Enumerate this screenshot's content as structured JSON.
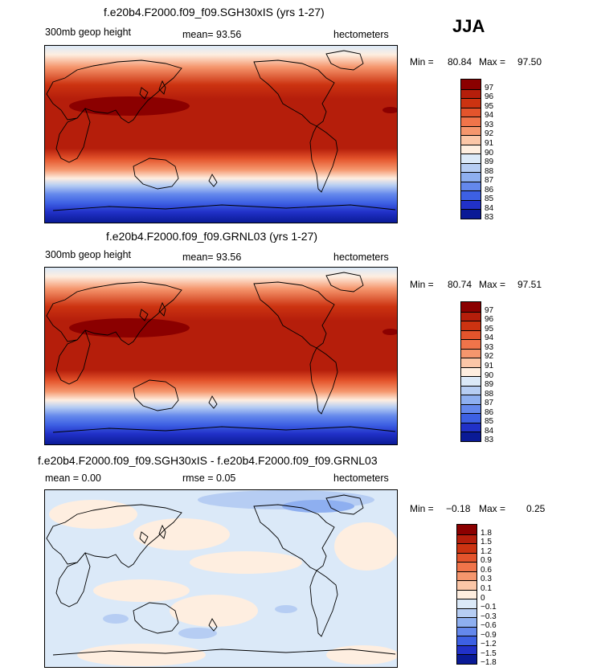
{
  "season": "JJA",
  "panels": [
    {
      "title": "f.e20b4.F2000.f09_f09.SGH30xIS (yrs 1-27)",
      "left_label": "300mb  geop height",
      "mean_text": "mean=   93.56",
      "units": "hectometers",
      "min_label": "Min =",
      "min_value": "80.84",
      "max_label": "Max =",
      "max_value": "97.50",
      "colorbar": {
        "labels": [
          "97",
          "96",
          "95",
          "94",
          "93",
          "92",
          "91",
          "90",
          "89",
          "88",
          "87",
          "86",
          "85",
          "84",
          "83"
        ],
        "colors": [
          "#8b0000",
          "#b51e0b",
          "#cc3311",
          "#e4542c",
          "#f0744a",
          "#f5966d",
          "#fbc6a7",
          "#feeee0",
          "#dbe9f8",
          "#b6cdf3",
          "#8eaff0",
          "#6488ec",
          "#3d60e3",
          "#2131c8",
          "#0a1a96"
        ]
      },
      "map_type": "absolute"
    },
    {
      "title": "f.e20b4.F2000.f09_f09.GRNL03 (yrs 1-27)",
      "left_label": "300mb  geop height",
      "mean_text": "mean=   93.56",
      "units": "hectometers",
      "min_label": "Min =",
      "min_value": "80.74",
      "max_label": "Max =",
      "max_value": "97.51",
      "colorbar": {
        "labels": [
          "97",
          "96",
          "95",
          "94",
          "93",
          "92",
          "91",
          "90",
          "89",
          "88",
          "87",
          "86",
          "85",
          "84",
          "83"
        ],
        "colors": [
          "#8b0000",
          "#b51e0b",
          "#cc3311",
          "#e4542c",
          "#f0744a",
          "#f5966d",
          "#fbc6a7",
          "#feeee0",
          "#dbe9f8",
          "#b6cdf3",
          "#8eaff0",
          "#6488ec",
          "#3d60e3",
          "#2131c8",
          "#0a1a96"
        ]
      },
      "map_type": "absolute"
    },
    {
      "title": "f.e20b4.F2000.f09_f09.SGH30xIS - f.e20b4.F2000.f09_f09.GRNL03",
      "left_label": "mean =     0.00",
      "mean_text": "rmse =     0.05",
      "units": "hectometers",
      "min_label": "Min =",
      "min_value": "−0.18",
      "max_label": "Max =",
      "max_value": "0.25",
      "colorbar": {
        "labels": [
          "1.8",
          "1.5",
          "1.2",
          "0.9",
          "0.6",
          "0.3",
          "0.1",
          "0",
          "−0.1",
          "−0.3",
          "−0.6",
          "−0.9",
          "−1.2",
          "−1.5",
          "−1.8"
        ],
        "colors": [
          "#8b0000",
          "#b51e0b",
          "#cc3311",
          "#e4542c",
          "#f0744a",
          "#f5966d",
          "#fbc6a7",
          "#feeee0",
          "#dbe9f8",
          "#b6cdf3",
          "#8eaff0",
          "#6488ec",
          "#3d60e3",
          "#2131c8",
          "#0a1a96"
        ]
      },
      "map_type": "difference"
    }
  ]
}
